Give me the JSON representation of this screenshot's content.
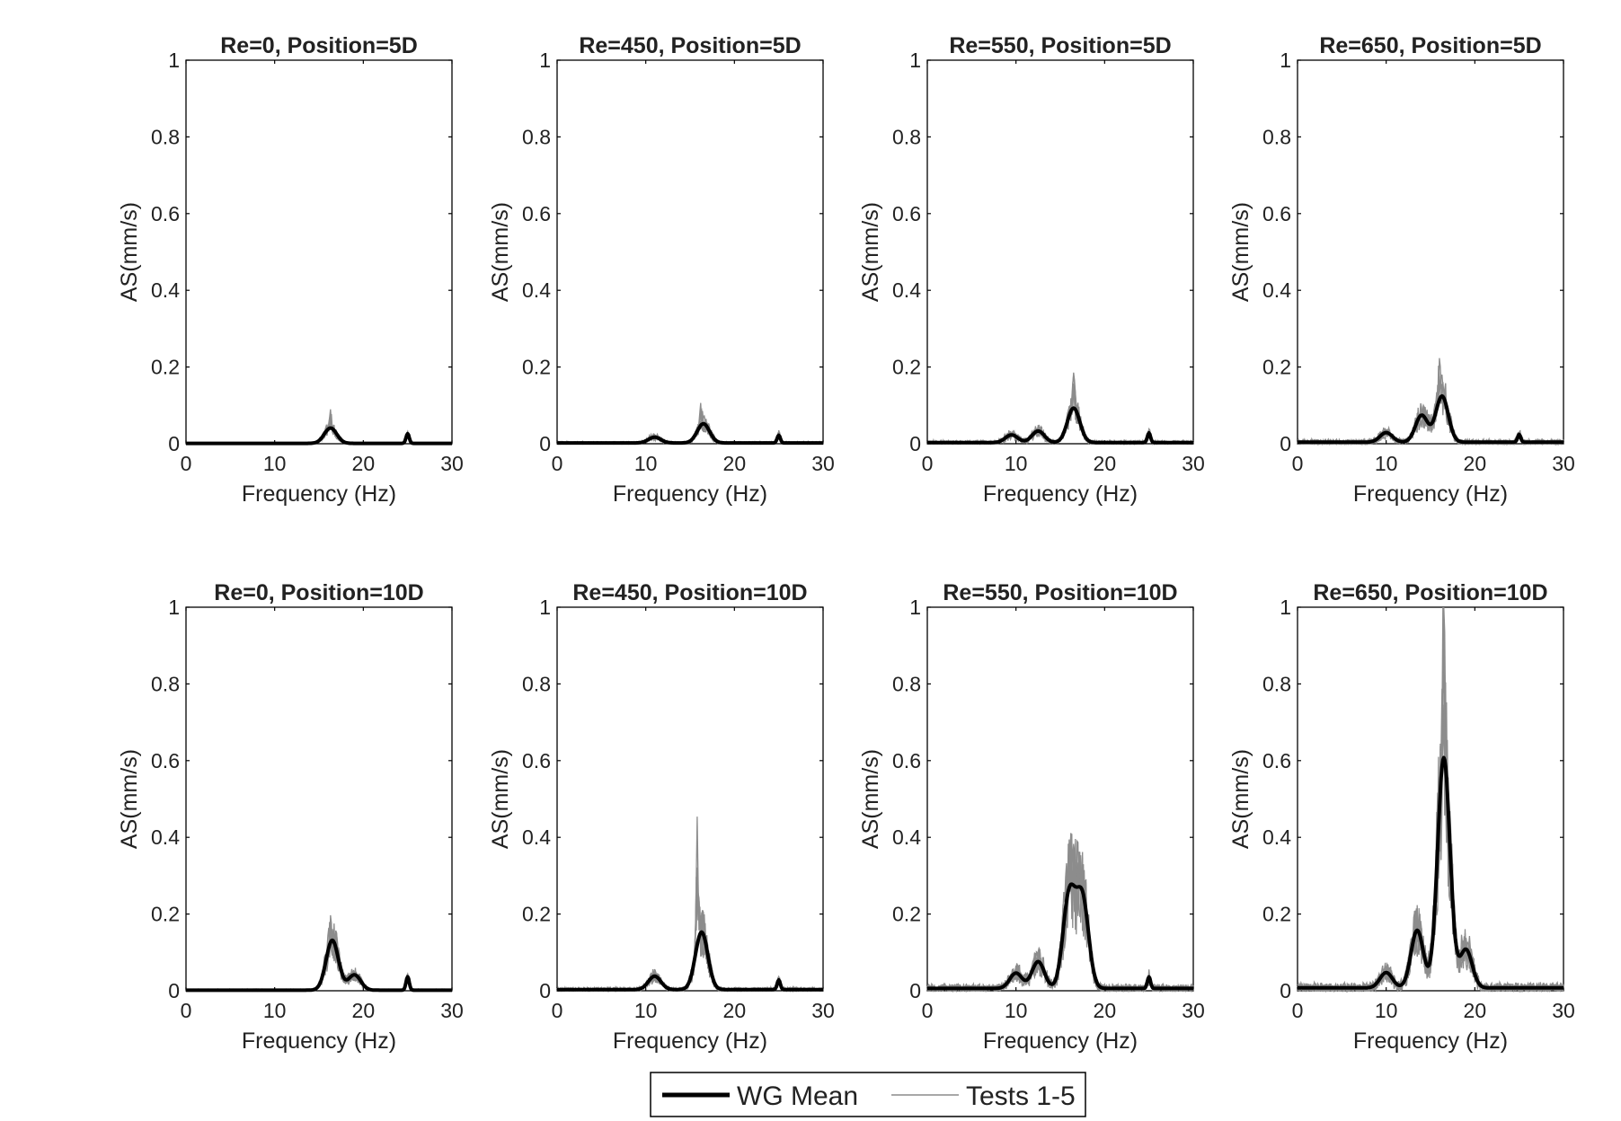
{
  "chart_data": {
    "type": "line",
    "layout": "2x4 grid of subplots",
    "xlabel": "Frequency (Hz)",
    "ylabel": "AS(mm/s)",
    "xlim": [
      0,
      30
    ],
    "ylim": [
      0,
      1
    ],
    "xticks": [
      0,
      10,
      20,
      30
    ],
    "yticks": [
      0,
      0.2,
      0.4,
      0.6,
      0.8,
      1
    ],
    "ytick_labels": [
      "0",
      "0.2",
      "0.4",
      "0.6",
      "0.8",
      "1"
    ],
    "grid": false,
    "legend": {
      "position": "bottom-center",
      "entries": [
        {
          "label": "WG Mean",
          "color": "#000000",
          "style": "thick"
        },
        {
          "label": "Tests 1-5",
          "color": "#8c8c8c",
          "style": "thin"
        }
      ]
    },
    "colors": {
      "mean": "#000000",
      "tests": "#8c8c8c"
    },
    "panels": [
      {
        "title": "Re=0, Position=5D",
        "mean_peaks": [
          [
            16.3,
            0.04
          ],
          [
            25,
            0.025
          ]
        ],
        "noise": 0.002,
        "test_peak_max": 0.08,
        "test_peak_freq": 16.3
      },
      {
        "title": "Re=450, Position=5D",
        "mean_peaks": [
          [
            11,
            0.015
          ],
          [
            16.5,
            0.05
          ],
          [
            25,
            0.02
          ]
        ],
        "noise": 0.004,
        "test_peak_max": 0.09,
        "test_peak_freq": 16.2
      },
      {
        "title": "Re=550, Position=5D",
        "mean_peaks": [
          [
            9.5,
            0.02
          ],
          [
            12.5,
            0.03
          ],
          [
            16.5,
            0.09
          ],
          [
            25,
            0.025
          ]
        ],
        "noise": 0.006,
        "test_peak_max": 0.15,
        "test_peak_freq": 16.5
      },
      {
        "title": "Re=650, Position=5D",
        "mean_peaks": [
          [
            10,
            0.025
          ],
          [
            14,
            0.07
          ],
          [
            16.3,
            0.12
          ],
          [
            25,
            0.02
          ]
        ],
        "noise": 0.008,
        "test_peak_max": 0.19,
        "test_peak_freq": 16
      },
      {
        "title": "Re=0, Position=10D",
        "mean_peaks": [
          [
            16.5,
            0.13
          ],
          [
            19,
            0.04
          ],
          [
            25,
            0.035
          ]
        ],
        "noise": 0.003,
        "test_peak_max": 0.155,
        "test_peak_freq": 16.3
      },
      {
        "title": "Re=450, Position=10D",
        "mean_peaks": [
          [
            11,
            0.035
          ],
          [
            16.3,
            0.15
          ],
          [
            25,
            0.025
          ]
        ],
        "noise": 0.006,
        "test_peak_max": 0.425,
        "test_peak_freq": 15.8
      },
      {
        "title": "Re=550, Position=10D",
        "mean_peaks": [
          [
            10,
            0.04
          ],
          [
            12.5,
            0.07
          ],
          [
            16,
            0.24
          ],
          [
            17.5,
            0.23
          ],
          [
            25,
            0.03
          ]
        ],
        "noise": 0.012,
        "test_peak_max": 0.405,
        "test_peak_freq": 16
      },
      {
        "title": "Re=650, Position=10D",
        "mean_peaks": [
          [
            10,
            0.04
          ],
          [
            13.5,
            0.15
          ],
          [
            16.5,
            0.6
          ],
          [
            19,
            0.1
          ]
        ],
        "noise": 0.015,
        "test_peak_max": 0.99,
        "test_peak_freq": 16.5
      }
    ]
  }
}
